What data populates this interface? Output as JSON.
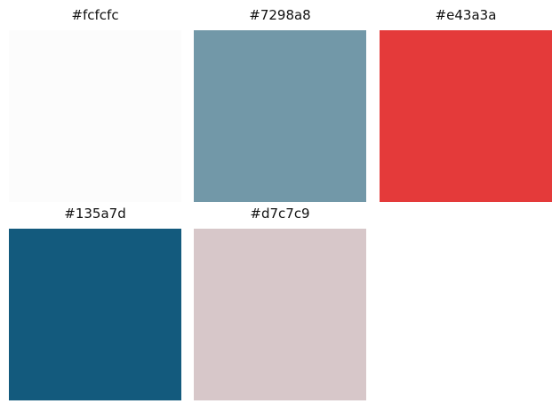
{
  "swatches": [
    {
      "label": "#fcfcfc",
      "color": "#fcfcfc"
    },
    {
      "label": "#7298a8",
      "color": "#7298a8"
    },
    {
      "label": "#e43a3a",
      "color": "#e43a3a"
    },
    {
      "label": "#135a7d",
      "color": "#135a7d"
    },
    {
      "label": "#d7c7c9",
      "color": "#d7c7c9"
    }
  ]
}
